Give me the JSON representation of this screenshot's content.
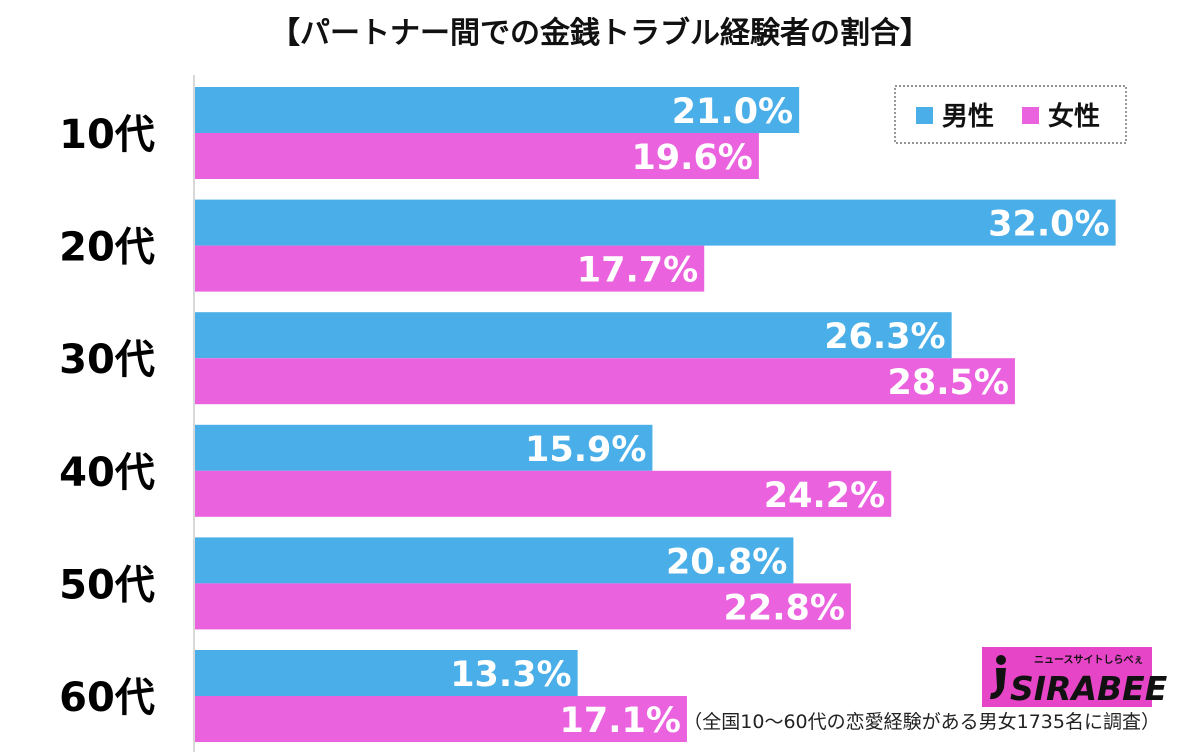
{
  "chart_data": {
    "type": "bar",
    "orientation": "horizontal",
    "title": "【パートナー間での金銭トラブル経験者の割合】",
    "categories": [
      "10代",
      "20代",
      "30代",
      "40代",
      "50代",
      "60代"
    ],
    "series": [
      {
        "name": "男性",
        "color": "#4aaee8",
        "values": [
          21.0,
          32.0,
          26.3,
          15.9,
          20.8,
          13.3
        ]
      },
      {
        "name": "女性",
        "color": "#eb62df",
        "values": [
          19.6,
          17.7,
          28.5,
          24.2,
          22.8,
          17.1
        ]
      }
    ],
    "value_format": "percent_one_decimal",
    "xlim": [
      0,
      32.5
    ],
    "grid": false,
    "legend_position": "top-right"
  },
  "footnote": "（全国10〜60代の恋愛経験がある男女1735名に調査）",
  "logo": {
    "tagline": "ニュースサイトしらべぇ",
    "name": "SIRABEE",
    "bg_color": "#e645c7"
  }
}
